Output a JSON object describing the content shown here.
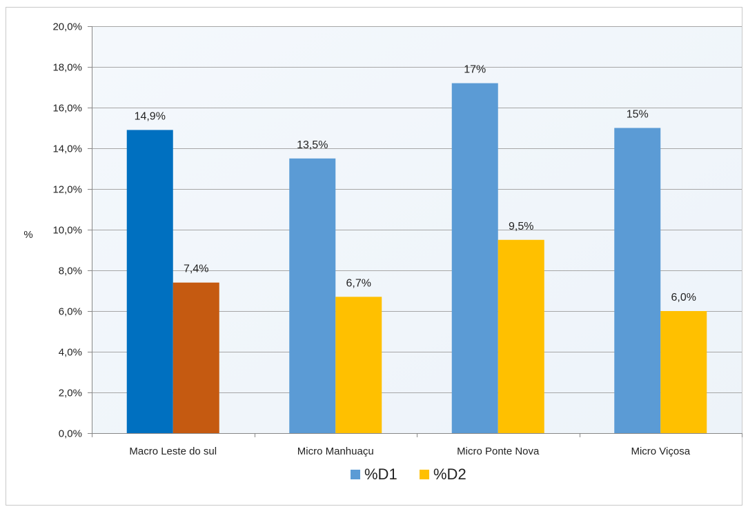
{
  "chart_data": {
    "type": "bar",
    "title": "",
    "xlabel": "",
    "ylabel": "%",
    "ylim": [
      0,
      20
    ],
    "y_ticks": [
      "0,0%",
      "2,0%",
      "4,0%",
      "6,0%",
      "8,0%",
      "10,0%",
      "12,0%",
      "14,0%",
      "16,0%",
      "18,0%",
      "20,0%"
    ],
    "grid": true,
    "legend_position": "bottom",
    "categories": [
      "Macro Leste do sul",
      "Micro Manhuaçu",
      "Micro Ponte Nova",
      "Micro Viçosa"
    ],
    "series": [
      {
        "name": "%D1",
        "values": [
          14.9,
          13.5,
          17.2,
          15.0
        ],
        "labels": [
          "14,9%",
          "13,5%",
          "17%",
          "15%"
        ],
        "color": "#5b9bd5",
        "first_category_color": "#0070c0"
      },
      {
        "name": "%D2",
        "values": [
          7.4,
          6.7,
          9.5,
          6.0
        ],
        "labels": [
          "7,4%",
          "6,7%",
          "9,5%",
          "6,0%"
        ],
        "color": "#ffc000",
        "first_category_color": "#c55a11"
      }
    ]
  }
}
